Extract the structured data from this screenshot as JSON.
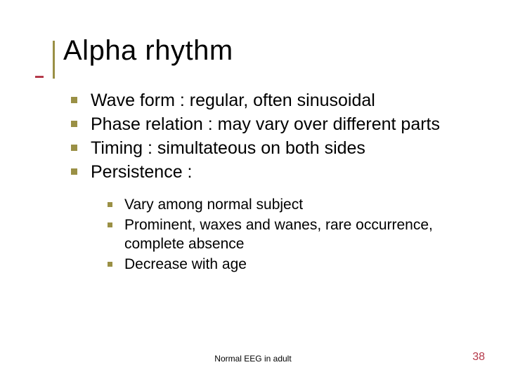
{
  "title": "Alpha rhythm",
  "bullets": [
    "Wave form : regular, often sinusoidal",
    "Phase relation : may vary over different parts",
    "Timing : simultateous on both sides",
    "Persistence :"
  ],
  "sub_bullets": [
    "Vary among normal subject",
    "Prominent, waxes and wanes, rare occurrence, complete absence",
    "Decrease with age"
  ],
  "footer": "Normal EEG in adult",
  "page_number": "38",
  "colors": {
    "bullet_square": "#9a9045",
    "accent_vertical": "#9a9045",
    "accent_notch": "#b53a4b",
    "page_number": "#b53a4b",
    "text": "#000000",
    "background": "#ffffff"
  },
  "typography": {
    "title_fontsize": 40,
    "bullet_fontsize": 25,
    "subbullet_fontsize": 21,
    "footer_fontsize": 12,
    "pagenum_fontsize": 16,
    "font_family": "Verdana"
  }
}
